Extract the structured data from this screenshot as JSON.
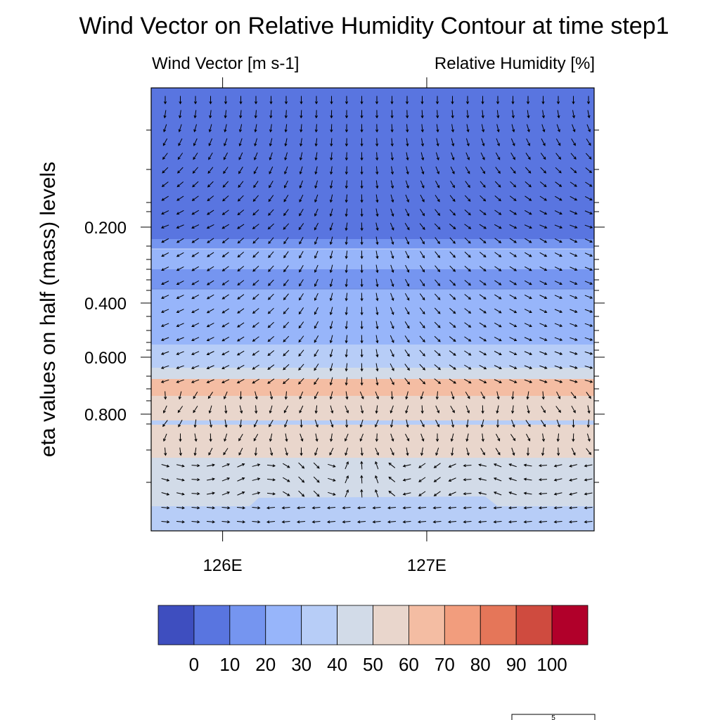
{
  "chart_data": {
    "type": "heatmap",
    "title": "Wind Vector on Relative Humidity Contour at time step1",
    "left_subtitle": "Wind Vector [m s-1]",
    "right_subtitle": "Relative Humidity [%]",
    "ylabel": "eta values on half (mass) levels",
    "xlabel": "",
    "x_ticks": [
      "126E",
      "127E"
    ],
    "x_tick_values": [
      126,
      127
    ],
    "xlim": [
      125.65,
      127.82
    ],
    "y_ticks": [
      "0.200",
      "0.400",
      "0.600",
      "0.800"
    ],
    "y_tick_values": [
      0.2,
      0.4,
      0.6,
      0.8
    ],
    "y_axis_note": "eta axis increases downward; tick spacing non-linear (half mass levels)",
    "colorbar": {
      "labels": [
        "0",
        "10",
        "20",
        "30",
        "40",
        "50",
        "60",
        "70",
        "80",
        "90",
        "100"
      ],
      "colors": [
        "#3e4ebf",
        "#5975e0",
        "#7595f0",
        "#97b5fa",
        "#b7cdf7",
        "#d2dbe8",
        "#e9d6cc",
        "#f4bda3",
        "#f29d7d",
        "#e57659",
        "#cf4b3f",
        "#b1002a"
      ]
    },
    "humidity_bands_top_to_bottom": [
      {
        "range": "10-20",
        "color": "#5975e0"
      },
      {
        "range": "20-30",
        "color": "#7595f0"
      },
      {
        "range": "30-40",
        "color": "#97b5fa"
      },
      {
        "range": "20-30",
        "color": "#7595f0"
      },
      {
        "range": "30-40",
        "color": "#97b5fa"
      },
      {
        "range": "40-50",
        "color": "#b7cdf7"
      },
      {
        "range": "50-60",
        "color": "#d2dbe8"
      },
      {
        "range": "70-80",
        "color": "#f4bda3"
      },
      {
        "range": "60-70",
        "color": "#e9d6cc"
      },
      {
        "range": "40-50",
        "color": "#b7cdf7"
      },
      {
        "range": "60-70",
        "color": "#e9d6cc"
      },
      {
        "range": "50-60",
        "color": "#d2dbe8"
      },
      {
        "range": "40-50",
        "color": "#b7cdf7"
      }
    ],
    "vector_reference": {
      "label": "5"
    }
  }
}
